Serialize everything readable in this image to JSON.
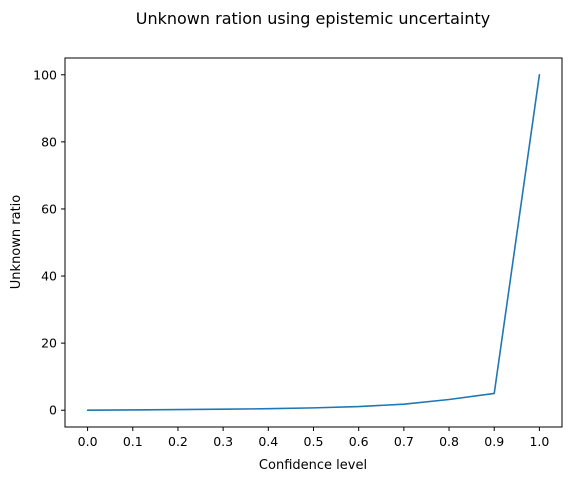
{
  "chart_data": {
    "type": "line",
    "title": "Unknown ration using epistemic uncertainty",
    "xlabel": "Confidence level",
    "ylabel": "Unknown ratio",
    "xlim": [
      -0.05,
      1.05
    ],
    "ylim": [
      -5,
      105
    ],
    "xticks": [
      0.0,
      0.1,
      0.2,
      0.3,
      0.4,
      0.5,
      0.6,
      0.7,
      0.8,
      0.9,
      1.0
    ],
    "xtick_labels": [
      "0.0",
      "0.1",
      "0.2",
      "0.3",
      "0.4",
      "0.5",
      "0.6",
      "0.7",
      "0.8",
      "0.9",
      "1.0"
    ],
    "yticks": [
      0,
      20,
      40,
      60,
      80,
      100
    ],
    "ytick_labels": [
      "0",
      "20",
      "40",
      "60",
      "80",
      "100"
    ],
    "grid": false,
    "series": [
      {
        "color": "#1f77b4",
        "x": [
          0.0,
          0.1,
          0.2,
          0.3,
          0.4,
          0.5,
          0.6,
          0.7,
          0.8,
          0.9,
          1.0
        ],
        "y": [
          0.0,
          0.1,
          0.2,
          0.3,
          0.45,
          0.7,
          1.1,
          1.8,
          3.2,
          5.0,
          100.0
        ]
      }
    ]
  }
}
